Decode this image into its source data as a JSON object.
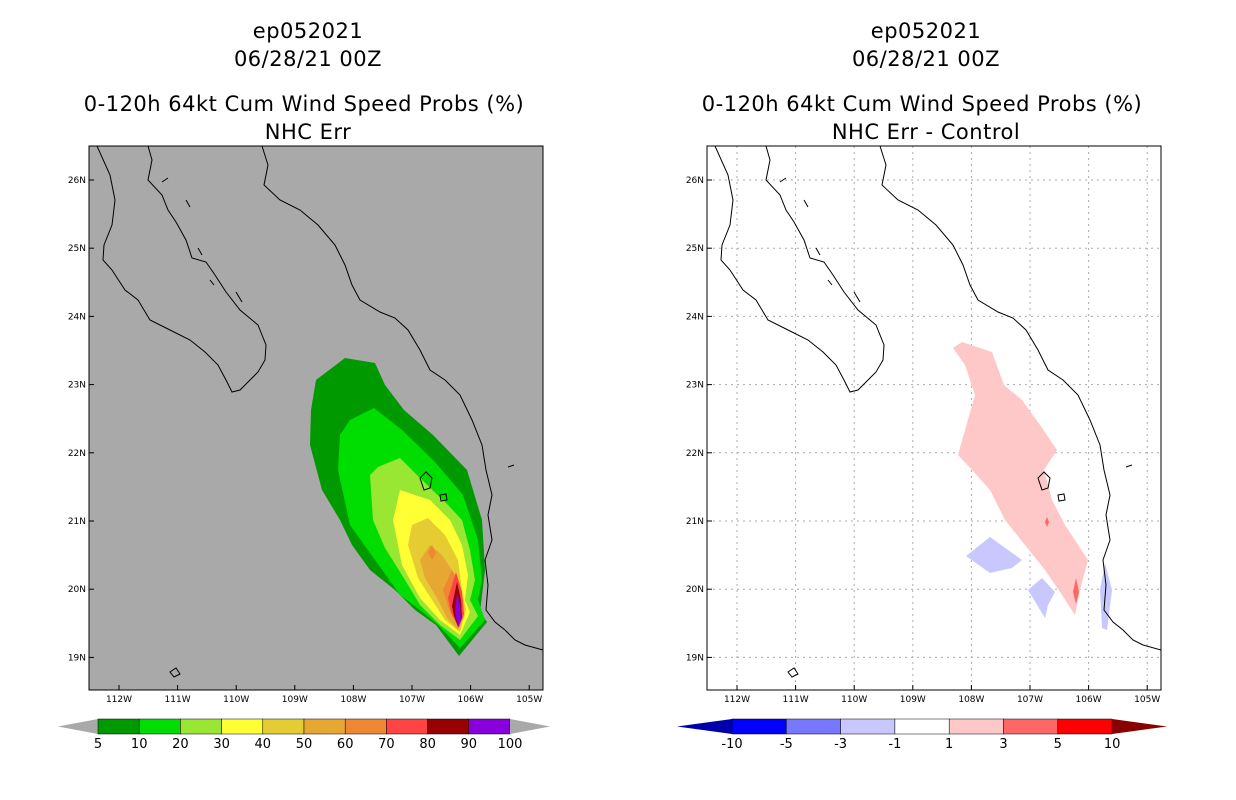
{
  "left_panel": {
    "storm_id": "ep052021",
    "datetime": "06/28/21 00Z",
    "product": "0-120h 64kt Cum Wind Speed Probs (%)",
    "subtitle": "NHC Err",
    "background_color": "#a9a9a9",
    "colorbar_labels": [
      "5",
      "10",
      "20",
      "30",
      "40",
      "50",
      "60",
      "70",
      "80",
      "90",
      "100"
    ],
    "colorbar_colors": [
      "#009900",
      "#00dd00",
      "#99e633",
      "#ffff33",
      "#e6cc33",
      "#e6a833",
      "#ee8833",
      "#ff4444",
      "#990000",
      "#8800dd"
    ]
  },
  "right_panel": {
    "storm_id": "ep052021",
    "datetime": "06/28/21 00Z",
    "product": "0-120h 64kt Cum Wind Speed Probs (%)",
    "subtitle": "NHC Err - Control",
    "background_color": "#ffffff",
    "colorbar_labels": [
      "-10",
      "-5",
      "-3",
      "-1",
      "1",
      "3",
      "5",
      "10"
    ],
    "colorbar_colors": [
      "#0000aa",
      "#0000ff",
      "#7777ff",
      "#c8c8ff",
      "#ffffff",
      "#ffc8c8",
      "#ff6666",
      "#ff0000",
      "#880000"
    ]
  },
  "axes": {
    "lon_labels": [
      "112W",
      "111W",
      "110W",
      "109W",
      "108W",
      "107W",
      "106W",
      "105W"
    ],
    "lat_labels": [
      "26N",
      "25N",
      "24N",
      "23N",
      "22N",
      "21N",
      "20N",
      "19N"
    ]
  }
}
